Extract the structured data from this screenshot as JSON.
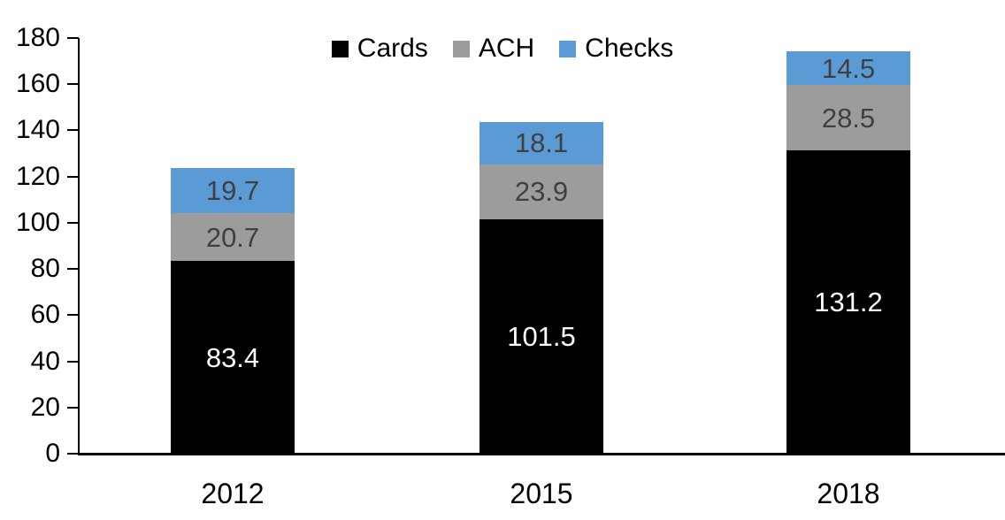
{
  "background": "#FFFFFF",
  "chart_data": {
    "type": "bar",
    "stacked": true,
    "title": "",
    "xlabel": "",
    "ylabel": "",
    "categories": [
      "2012",
      "2015",
      "2018"
    ],
    "series": [
      {
        "name": "Cards",
        "color": "#000000",
        "label_color": "#FFFFFF",
        "values": [
          83.4,
          101.5,
          131.2
        ]
      },
      {
        "name": "ACH",
        "color": "#9C9C9C",
        "label_color": "#404040",
        "values": [
          20.7,
          23.9,
          28.5
        ]
      },
      {
        "name": "Checks",
        "color": "#5B9BD5",
        "label_color": "#404040",
        "values": [
          19.7,
          18.1,
          14.5
        ]
      }
    ],
    "totals": [
      123.8,
      143.5,
      174.2
    ],
    "ylim": [
      0,
      180
    ],
    "ytick_step": 20,
    "ytick_labels": [
      "0",
      "20",
      "40",
      "60",
      "80",
      "100",
      "120",
      "140",
      "160",
      "180"
    ],
    "legend_position": "top-center",
    "legend_entries": [
      "Cards",
      "ACH",
      "Checks"
    ],
    "grid": false,
    "value_label_decimals": 1
  }
}
